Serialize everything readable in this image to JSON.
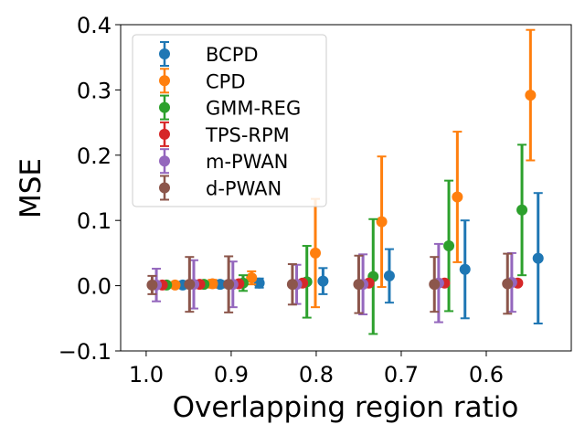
{
  "chart_data": {
    "type": "scatter",
    "title": "",
    "xlabel": "Overlapping region ratio",
    "ylabel": "MSE",
    "categories": [
      "1.0",
      "0.9",
      "0.8",
      "0.7",
      "0.6"
    ],
    "xlim": [
      1.03,
      0.5
    ],
    "ylim": [
      -0.1,
      0.4
    ],
    "yticks": [
      "−0.1",
      "0.0",
      "0.1",
      "0.2",
      "0.3",
      "0.4"
    ],
    "grid": false,
    "legend_position": "upper-left",
    "group_centers": [
      0.981,
      0.937,
      0.891,
      0.816,
      0.738,
      0.649,
      0.563
    ],
    "series": [
      {
        "name": "BCPD",
        "color": "#1f77b4",
        "offset": -0.024,
        "values": [
          0.001,
          0.002,
          0.004,
          0.007,
          0.015,
          0.025,
          0.042
        ],
        "err": [
          0.005,
          0.005,
          0.007,
          0.02,
          0.041,
          0.075,
          0.1
        ]
      },
      {
        "name": "CPD",
        "color": "#ff7f0e",
        "offset": -0.015,
        "values": [
          0.001,
          0.003,
          0.012,
          0.05,
          0.098,
          0.136,
          0.292
        ],
        "err": [
          0.004,
          0.006,
          0.01,
          0.083,
          0.1,
          0.1,
          0.1
        ]
      },
      {
        "name": "GMM-REG",
        "color": "#2ca02c",
        "offset": -0.005,
        "values": [
          0.001,
          0.002,
          0.004,
          0.006,
          0.014,
          0.061,
          0.116
        ],
        "err": [
          0.003,
          0.004,
          0.012,
          0.055,
          0.088,
          0.1,
          0.1
        ]
      },
      {
        "name": "TPS-RPM",
        "color": "#d62728",
        "offset": -0.0,
        "values": [
          0.001,
          0.002,
          0.003,
          0.004,
          0.004,
          0.004,
          0.004
        ],
        "err": [
          0.0,
          0.0,
          0.0,
          0.0,
          0.0,
          0.0,
          0.0
        ]
      },
      {
        "name": "m-PWAN",
        "color": "#9467bd",
        "offset": 0.007,
        "values": [
          0.001,
          0.002,
          0.002,
          0.002,
          0.002,
          0.004,
          0.005
        ],
        "err": [
          0.025,
          0.037,
          0.035,
          0.03,
          0.046,
          0.06,
          0.045
        ]
      },
      {
        "name": "d-PWAN",
        "color": "#8c564b",
        "offset": 0.012,
        "values": [
          0.001,
          0.002,
          0.002,
          0.002,
          0.002,
          0.002,
          0.003
        ],
        "err": [
          0.014,
          0.042,
          0.043,
          0.031,
          0.044,
          0.042,
          0.046
        ]
      }
    ]
  }
}
